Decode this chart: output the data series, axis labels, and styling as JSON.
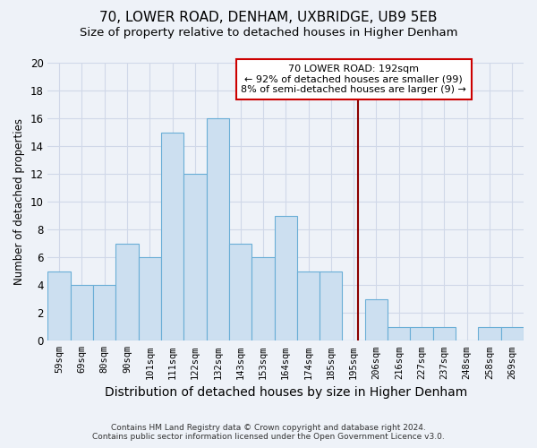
{
  "title": "70, LOWER ROAD, DENHAM, UXBRIDGE, UB9 5EB",
  "subtitle": "Size of property relative to detached houses in Higher Denham",
  "xlabel": "Distribution of detached houses by size in Higher Denham",
  "ylabel": "Number of detached properties",
  "footer_line1": "Contains HM Land Registry data © Crown copyright and database right 2024.",
  "footer_line2": "Contains public sector information licensed under the Open Government Licence v3.0.",
  "bin_labels": [
    "59sqm",
    "69sqm",
    "80sqm",
    "90sqm",
    "101sqm",
    "111sqm",
    "122sqm",
    "132sqm",
    "143sqm",
    "153sqm",
    "164sqm",
    "174sqm",
    "185sqm",
    "195sqm",
    "206sqm",
    "216sqm",
    "227sqm",
    "237sqm",
    "248sqm",
    "258sqm",
    "269sqm"
  ],
  "bar_values": [
    5,
    4,
    4,
    7,
    6,
    15,
    12,
    16,
    7,
    6,
    9,
    5,
    5,
    0,
    3,
    1,
    1,
    1,
    0,
    1,
    1
  ],
  "bar_color": "#ccdff0",
  "bar_edge_color": "#6aaed6",
  "marker_label_line1": "70 LOWER ROAD: 192sqm",
  "marker_label_line2": "← 92% of detached houses are smaller (99)",
  "marker_label_line3": "8% of semi-detached houses are larger (9) →",
  "marker_color": "#8b0000",
  "annotation_box_edge": "#cc0000",
  "ylim": [
    0,
    20
  ],
  "yticks": [
    0,
    2,
    4,
    6,
    8,
    10,
    12,
    14,
    16,
    18,
    20
  ],
  "background_color": "#eef2f8",
  "grid_color": "#d0d8e8",
  "title_fontsize": 11,
  "subtitle_fontsize": 9.5,
  "xlabel_fontsize": 10,
  "ylabel_fontsize": 8.5
}
